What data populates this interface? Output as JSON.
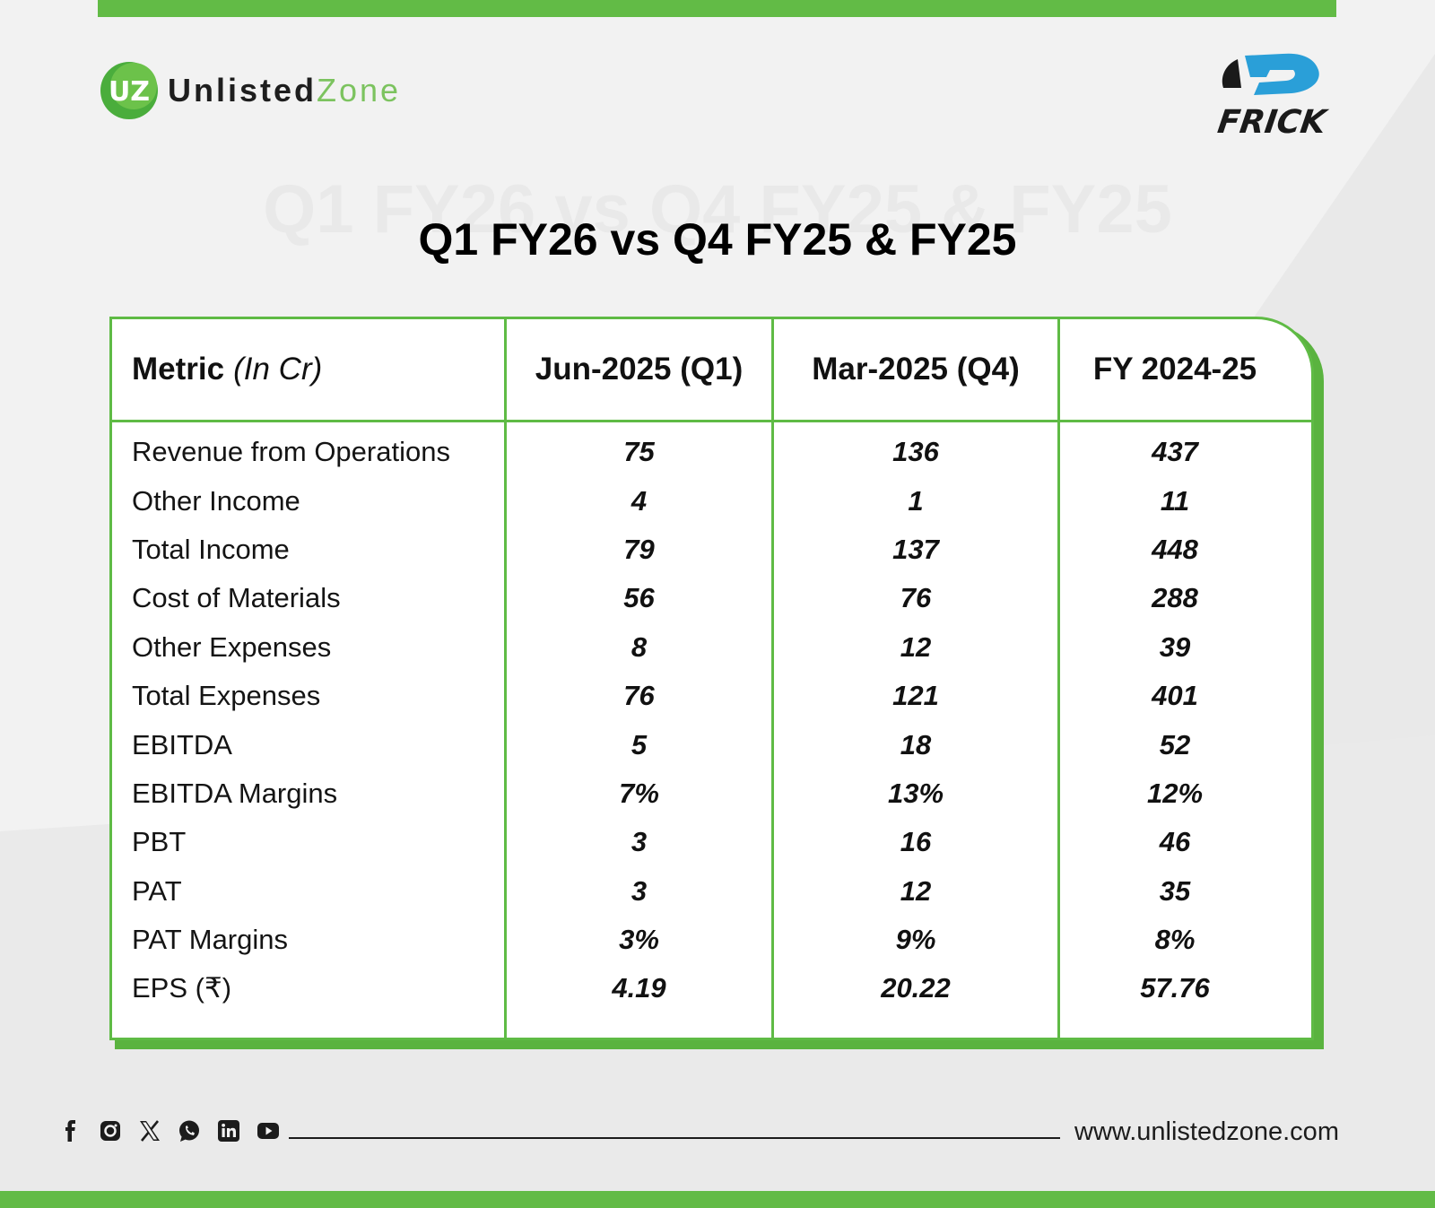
{
  "brand": {
    "name_part1": "Unlisted",
    "name_part2": "Zone",
    "logo_text": "UZ",
    "partner_logo_text": "FRICK",
    "accent_color": "#62bb46"
  },
  "title": "Q1 FY26 vs Q4 FY25 & FY25",
  "table": {
    "header": {
      "metric": "Metric",
      "unit": "(In Cr)",
      "columns": [
        "Jun-2025 (Q1)",
        "Mar-2025 (Q4)",
        "FY 2024-25"
      ]
    },
    "rows": [
      {
        "metric": "Revenue from Operations",
        "values": [
          "75",
          "136",
          "437"
        ]
      },
      {
        "metric": "Other Income",
        "values": [
          "4",
          "1",
          "11"
        ]
      },
      {
        "metric": "Total Income",
        "values": [
          "79",
          "137",
          "448"
        ]
      },
      {
        "metric": "Cost of Materials",
        "values": [
          "56",
          "76",
          "288"
        ]
      },
      {
        "metric": "Other Expenses",
        "values": [
          "8",
          "12",
          "39"
        ]
      },
      {
        "metric": "Total Expenses",
        "values": [
          "76",
          "121",
          "401"
        ]
      },
      {
        "metric": "EBITDA",
        "values": [
          "5",
          "18",
          "52"
        ]
      },
      {
        "metric": "EBITDA Margins",
        "values": [
          "7%",
          "13%",
          "12%"
        ]
      },
      {
        "metric": "PBT",
        "values": [
          "3",
          "16",
          "46"
        ]
      },
      {
        "metric": "PAT",
        "values": [
          "3",
          "12",
          "35"
        ]
      },
      {
        "metric": "PAT Margins",
        "values": [
          "3%",
          "9%",
          "8%"
        ]
      },
      {
        "metric": "EPS (₹)",
        "values": [
          "4.19",
          "20.22",
          "57.76"
        ]
      }
    ]
  },
  "footer": {
    "social_icons": [
      "facebook-icon",
      "instagram-icon",
      "x-icon",
      "whatsapp-icon",
      "linkedin-icon",
      "youtube-icon"
    ],
    "website": "www.unlistedzone.com"
  }
}
